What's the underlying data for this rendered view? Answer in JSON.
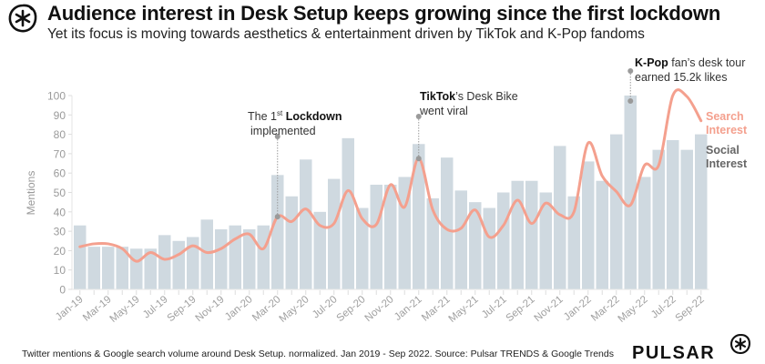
{
  "title": "Audience interest in Desk Setup keeps growing since the first lockdown",
  "subtitle": "Yet its focus is moving towards aesthetics & entertainment driven by TikTok and K-Pop fandoms",
  "footer": "Twitter mentions & Google search volume around Desk Setup. normalized. Jan 2019 - Sep 2022. Source: Pulsar TRENDS & Google Trends",
  "brand": "PULSAR",
  "logo_icon": "pulsar-asterisk-icon",
  "colors": {
    "bars": "#cfd9e0",
    "line": "#f4a08e",
    "annotation": "#9a9a9a",
    "axis": "#999999"
  },
  "annotations": [
    {
      "bold": "",
      "pre": "The 1",
      "sup": "st",
      "bold2": "Lockdown",
      "line2": "implemented",
      "month": "Mar-20"
    },
    {
      "bold": "TikTok",
      "rest": "’s Desk Bike",
      "line2": "went viral",
      "month": "Jan-21"
    },
    {
      "bold": "K-Pop",
      "rest": " fan’s desk tour",
      "line2": "earned 15.2k likes",
      "month": "Apr-22"
    }
  ],
  "legend": {
    "search": [
      "Search",
      "Interest"
    ],
    "social": [
      "Social",
      "Interest"
    ]
  },
  "chart_data": {
    "type": "bar+line",
    "title": "Audience interest in Desk Setup keeps growing since the first lockdown",
    "ylabel": "Mentions",
    "xlabel": "",
    "ylim": [
      0,
      100
    ],
    "yticks": [
      0,
      10,
      20,
      30,
      40,
      50,
      60,
      70,
      80,
      90,
      100
    ],
    "grid": false,
    "categories": [
      "Jan-19",
      "Feb-19",
      "Mar-19",
      "Apr-19",
      "May-19",
      "Jun-19",
      "Jul-19",
      "Aug-19",
      "Sep-19",
      "Oct-19",
      "Nov-19",
      "Dec-19",
      "Jan-20",
      "Feb-20",
      "Mar-20",
      "Apr-20",
      "May-20",
      "Jun-20",
      "Jul-20",
      "Aug-20",
      "Sep-20",
      "Oct-20",
      "Nov-20",
      "Dec-20",
      "Jan-21",
      "Feb-21",
      "Mar-21",
      "Apr-21",
      "May-21",
      "Jun-21",
      "Jul-21",
      "Aug-21",
      "Sep-21",
      "Oct-21",
      "Nov-21",
      "Dec-21",
      "Jan-22",
      "Feb-22",
      "Mar-22",
      "Apr-22",
      "May-22",
      "Jun-22",
      "Jul-22",
      "Aug-22",
      "Sep-22"
    ],
    "tick_labels": [
      "Jan-19",
      "Mar-19",
      "May-19",
      "Jul-19",
      "Sep-19",
      "Nov-19",
      "Jan-20",
      "Mar-20",
      "May-20",
      "Jul-20",
      "Sep-20",
      "Nov-20",
      "Jan-21",
      "Mar-21",
      "May-21",
      "Jul-21",
      "Sep-21",
      "Nov-21",
      "Jan-22",
      "Mar-22",
      "May-22",
      "Jul-22",
      "Sep-22"
    ],
    "series": [
      {
        "name": "Social Interest",
        "type": "bar",
        "values": [
          33,
          22,
          22,
          22,
          21,
          21,
          28,
          25,
          27,
          36,
          31,
          33,
          31,
          33,
          59,
          48,
          67,
          40,
          57,
          78,
          42,
          54,
          54,
          58,
          75,
          47,
          68,
          51,
          45,
          42,
          50,
          56,
          56,
          50,
          74,
          48,
          66,
          56,
          80,
          100,
          58,
          72,
          77,
          72,
          80
        ]
      },
      {
        "name": "Search Interest",
        "type": "line",
        "values": [
          22,
          23.5,
          23.5,
          21,
          14.5,
          19,
          15.5,
          18,
          22.5,
          19,
          21,
          26,
          28.5,
          21,
          37.5,
          35,
          41.5,
          33,
          34,
          51,
          36.5,
          33.5,
          54,
          42.5,
          67.5,
          41,
          31,
          31.5,
          41,
          27,
          33,
          46,
          34,
          44.5,
          38.5,
          40,
          75.5,
          58.5,
          50.5,
          43.5,
          64,
          64,
          100,
          99.5,
          87
        ]
      }
    ],
    "legend": [
      "Search Interest",
      "Social Interest"
    ],
    "legend_position": "right"
  }
}
